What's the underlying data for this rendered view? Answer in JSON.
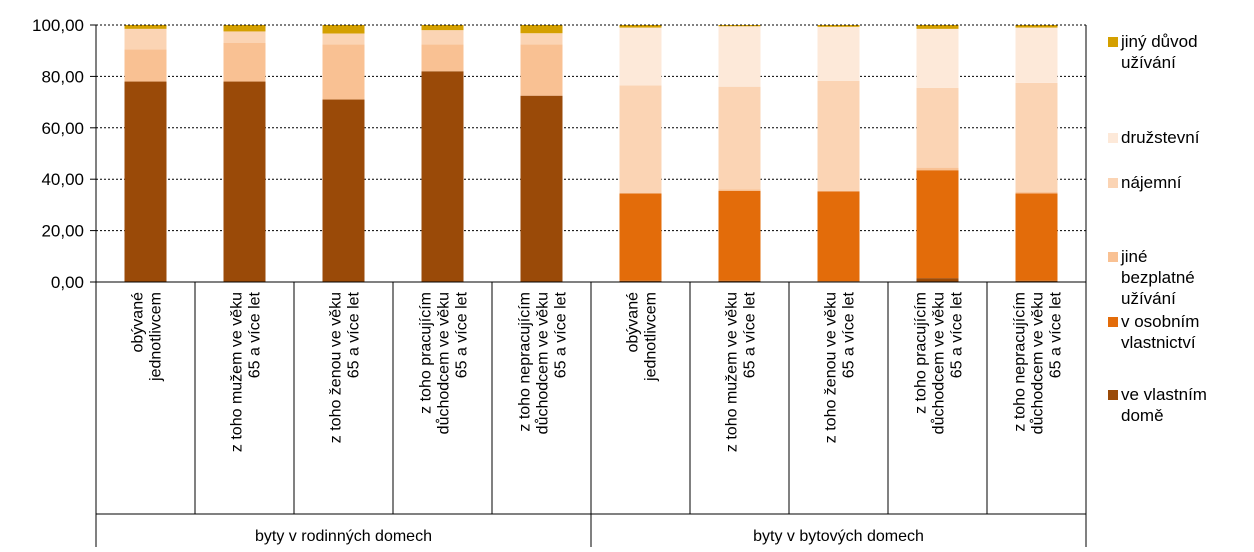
{
  "chart_data": {
    "type": "bar",
    "stacked": true,
    "ylim": [
      0,
      100
    ],
    "yticks": [
      "0,00",
      "20,00",
      "40,00",
      "60,00",
      "80,00",
      "100,00"
    ],
    "ytick_values": [
      0,
      20,
      40,
      60,
      80,
      100
    ],
    "grid": "horizontal dotted",
    "legend_position": "right",
    "groups": [
      {
        "label": "byty v rodinných domech",
        "count": 5
      },
      {
        "label": "byty v bytových domech",
        "count": 5
      }
    ],
    "categories": [
      [
        "obývané",
        "jednotlivcem"
      ],
      [
        "z toho mužem ve věku",
        "65 a více let"
      ],
      [
        "z toho ženou ve věku",
        "65 a více let"
      ],
      [
        "z toho pracujícím",
        "důchodcem ve věku",
        "65 a více let"
      ],
      [
        "z toho nepracujícím",
        "důchodcem ve věku",
        "65 a více let"
      ],
      [
        "obývané",
        "jednotlivcem"
      ],
      [
        "z toho mužem ve věku",
        "65 a více let"
      ],
      [
        "z toho ženou ve věku",
        "65 a více let"
      ],
      [
        "z toho pracujícím",
        "důchodcem ve věku",
        "65 a více let"
      ],
      [
        "z toho nepracujícím",
        "důchodcem ve věku",
        "65 a více let"
      ]
    ],
    "series": [
      {
        "name": "ve vlastním domě",
        "color": "#9A4A08",
        "values": [
          78,
          78,
          71,
          82,
          72.5,
          0.5,
          0.5,
          0.3,
          1.5,
          0.5
        ]
      },
      {
        "name": "v osobním vlastnictví",
        "color": "#E36C0A",
        "values": [
          0,
          0,
          0,
          0,
          0,
          34,
          35,
          35,
          42,
          34
        ]
      },
      {
        "name": "jiné bezplatné užívání",
        "color": "#F9C193",
        "values": [
          12.5,
          15,
          21.5,
          10.5,
          20,
          0,
          0.5,
          0,
          1,
          0.5
        ]
      },
      {
        "name": "nájemní",
        "color": "#FBD4B4",
        "values": [
          8,
          4.5,
          4.2,
          5.5,
          4.3,
          42,
          40,
          43,
          31,
          42.5
        ]
      },
      {
        "name": "družstevní",
        "color": "#FDE9D9",
        "values": [
          0,
          0,
          0,
          0,
          0,
          22.5,
          23.5,
          21,
          23,
          21.5
        ]
      },
      {
        "name": "jiný důvod užívání",
        "color": "#D4A000",
        "values": [
          1.5,
          2.5,
          3.3,
          2,
          3.2,
          1,
          0.5,
          0.7,
          1.5,
          1
        ]
      }
    ],
    "legend_labels": [
      {
        "series": 5,
        "lines": [
          "jiný důvod",
          "užívání"
        ]
      },
      {
        "series": 4,
        "lines": [
          "družstevní"
        ]
      },
      {
        "series": 3,
        "lines": [
          "nájemní"
        ]
      },
      {
        "series": 2,
        "lines": [
          "jiné",
          "bezplatné",
          "užívání"
        ]
      },
      {
        "series": 1,
        "lines": [
          "v osobním",
          "vlastnictví"
        ]
      },
      {
        "series": 0,
        "lines": [
          "ve vlastním",
          "domě"
        ]
      }
    ]
  }
}
